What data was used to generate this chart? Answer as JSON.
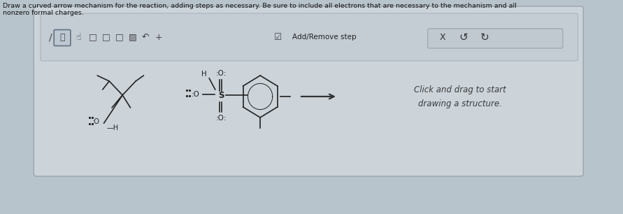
{
  "background_color": "#b8c4cc",
  "panel_color": "#ccd4da",
  "toolbar_color": "#bcc8d0",
  "title_line1": "Draw a curved arrow mechanism for the reaction, adding steps as necessary. Be sure to include all electrons that are necessary to the mechanism and all",
  "title_line2": "nonzero formal charges.",
  "title_fontsize": 6.8,
  "title_color": "#111111",
  "add_remove_text": "Add/Remove step",
  "click_drag_text": "Click and drag to start\ndrawing a structure.",
  "arrow_color": "#333333",
  "molecule_color": "#222222"
}
